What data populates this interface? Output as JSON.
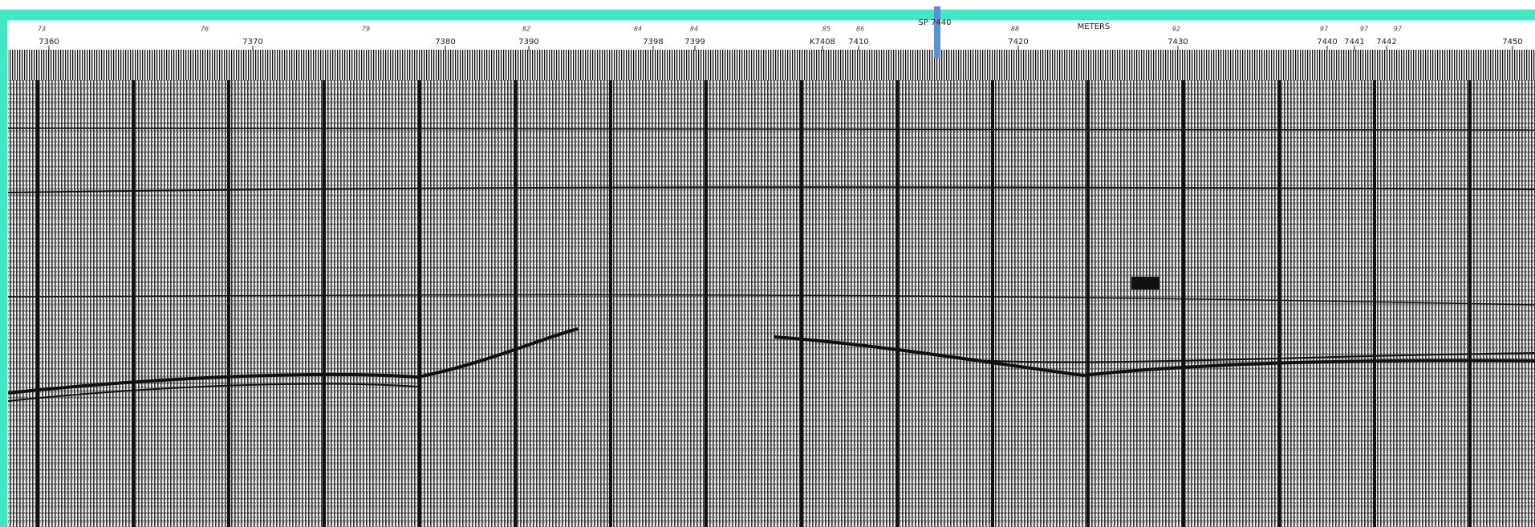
{
  "header": {
    "scale_label": "METERS",
    "shotpoint_label": "SP 7440"
  },
  "trace_labels": [
    "7360",
    "7370",
    "7380",
    "7390",
    "7398",
    "7399",
    "K7408",
    "7410",
    "7420",
    "7430",
    "7440",
    "7441",
    "7442",
    "7450"
  ],
  "top_marks": [
    "73",
    "76",
    "79",
    "82",
    "84",
    "84",
    "85",
    "86",
    "88",
    "92",
    "97",
    "97",
    "97"
  ]
}
